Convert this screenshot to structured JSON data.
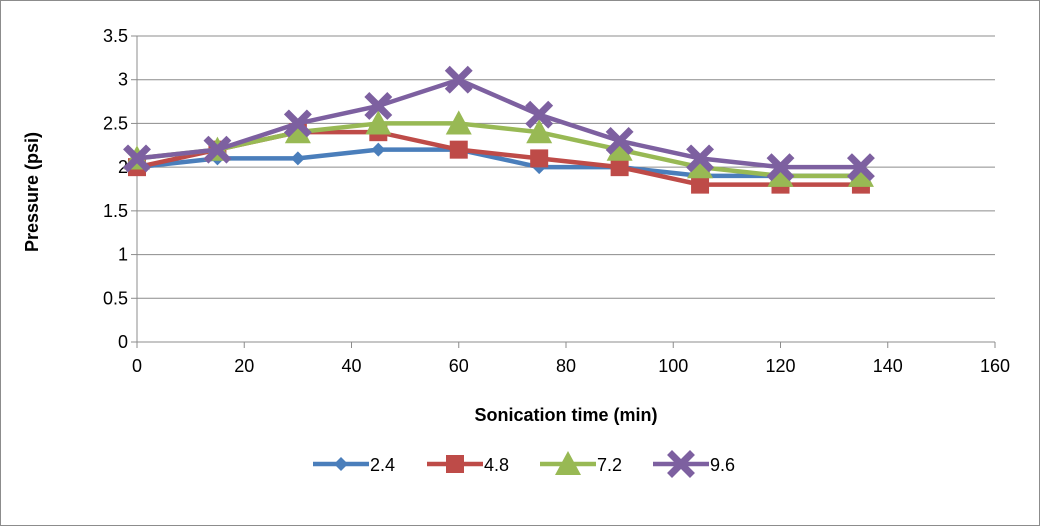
{
  "chart_data": {
    "type": "line",
    "title": "",
    "xlabel": "Sonication time (min)",
    "ylabel": "Pressure (psi)",
    "xlim": [
      0,
      160
    ],
    "ylim": [
      0,
      3.5
    ],
    "x_ticks": [
      "0",
      "20",
      "40",
      "60",
      "80",
      "100",
      "120",
      "140",
      "160"
    ],
    "y_ticks": [
      "0",
      "0.5",
      "1",
      "1.5",
      "2",
      "2.5",
      "3",
      "3.5"
    ],
    "grid": "horizontal",
    "legend_position": "bottom",
    "x": [
      0,
      15,
      30,
      45,
      60,
      75,
      90,
      105,
      120,
      135
    ],
    "series": [
      {
        "name": "2.4",
        "color": "#4a7ebb",
        "marker": "diamond",
        "values": [
          2.0,
          2.1,
          2.1,
          2.2,
          2.2,
          2.0,
          2.0,
          1.9,
          1.9,
          1.9
        ]
      },
      {
        "name": "4.8",
        "color": "#be4b48",
        "marker": "square",
        "values": [
          2.0,
          2.2,
          2.4,
          2.4,
          2.2,
          2.1,
          2.0,
          1.8,
          1.8,
          1.8
        ]
      },
      {
        "name": "7.2",
        "color": "#98b954",
        "marker": "triangle",
        "values": [
          2.1,
          2.2,
          2.4,
          2.5,
          2.5,
          2.4,
          2.2,
          2.0,
          1.9,
          1.9
        ]
      },
      {
        "name": "9.6",
        "color": "#7d60a0",
        "marker": "x",
        "values": [
          2.1,
          2.2,
          2.5,
          2.7,
          3.0,
          2.6,
          2.3,
          2.1,
          2.0,
          2.0
        ]
      }
    ]
  }
}
